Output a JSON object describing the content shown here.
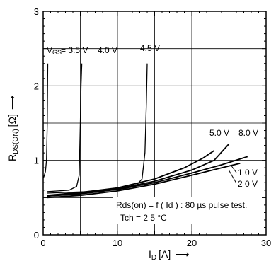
{
  "chart_data": {
    "type": "line",
    "title": "",
    "xlabel": "I",
    "xlabel_sub": "D",
    "xlabel_unit": "[A]",
    "xlabel_arrow": "⟶",
    "ylabel": "R",
    "ylabel_sub": "DS(ON)",
    "ylabel_unit": "[Ω]",
    "ylabel_arrow": "⟶",
    "xlim": [
      0,
      30
    ],
    "ylim": [
      0,
      3
    ],
    "xticks": [
      0,
      10,
      20,
      30
    ],
    "yticks": [
      0,
      1,
      2,
      3
    ],
    "grid": true,
    "annotation_lines": [
      "Rds(on) = f ( Id ) : 80 µs pulse test.",
      "Tch = 2 5 °C"
    ],
    "vgs_prefix": "V",
    "vgs_prefix_sub": "GS",
    "series": [
      {
        "name": "= 3.5 V",
        "x": [
          0.0,
          0.1,
          0.3,
          0.45,
          0.55,
          0.6,
          0.62
        ],
        "y": [
          0.76,
          0.78,
          0.85,
          1.0,
          1.5,
          2.1,
          2.3
        ]
      },
      {
        "name": "4.0 V",
        "x": [
          0.5,
          2.0,
          3.5,
          4.5,
          4.85,
          5.0,
          5.1,
          5.2
        ],
        "y": [
          0.58,
          0.59,
          0.6,
          0.65,
          0.8,
          1.5,
          2.0,
          2.3
        ]
      },
      {
        "name": "4.5 V",
        "x": [
          0.5,
          3.0,
          6.0,
          9.0,
          11.0,
          12.5,
          13.3,
          13.7,
          13.9,
          14.0
        ],
        "y": [
          0.56,
          0.57,
          0.58,
          0.6,
          0.62,
          0.66,
          0.75,
          1.1,
          1.8,
          2.3
        ]
      },
      {
        "name": "5.0 V",
        "x": [
          0.5,
          5.0,
          10.0,
          15.0,
          19.0,
          21.5,
          23.0
        ],
        "y": [
          0.53,
          0.57,
          0.63,
          0.75,
          0.9,
          1.03,
          1.13
        ]
      },
      {
        "name": "8.0 V",
        "x": [
          0.5,
          5.0,
          10.0,
          15.0,
          20.0,
          23.0,
          25.0
        ],
        "y": [
          0.52,
          0.56,
          0.62,
          0.72,
          0.87,
          1.0,
          1.22
        ]
      },
      {
        "name": "1 0 V",
        "x": [
          0.5,
          5.0,
          10.0,
          15.0,
          20.0,
          24.0,
          27.5
        ],
        "y": [
          0.52,
          0.55,
          0.61,
          0.7,
          0.83,
          0.94,
          1.05
        ]
      },
      {
        "name": "2 0 V",
        "x": [
          0.5,
          5.0,
          10.0,
          15.0,
          20.0,
          24.0,
          26.5
        ],
        "y": [
          0.5,
          0.53,
          0.59,
          0.68,
          0.8,
          0.9,
          0.96
        ]
      }
    ]
  },
  "colors": {
    "line": "#000000",
    "grid": "#000000",
    "background": "#ffffff"
  }
}
